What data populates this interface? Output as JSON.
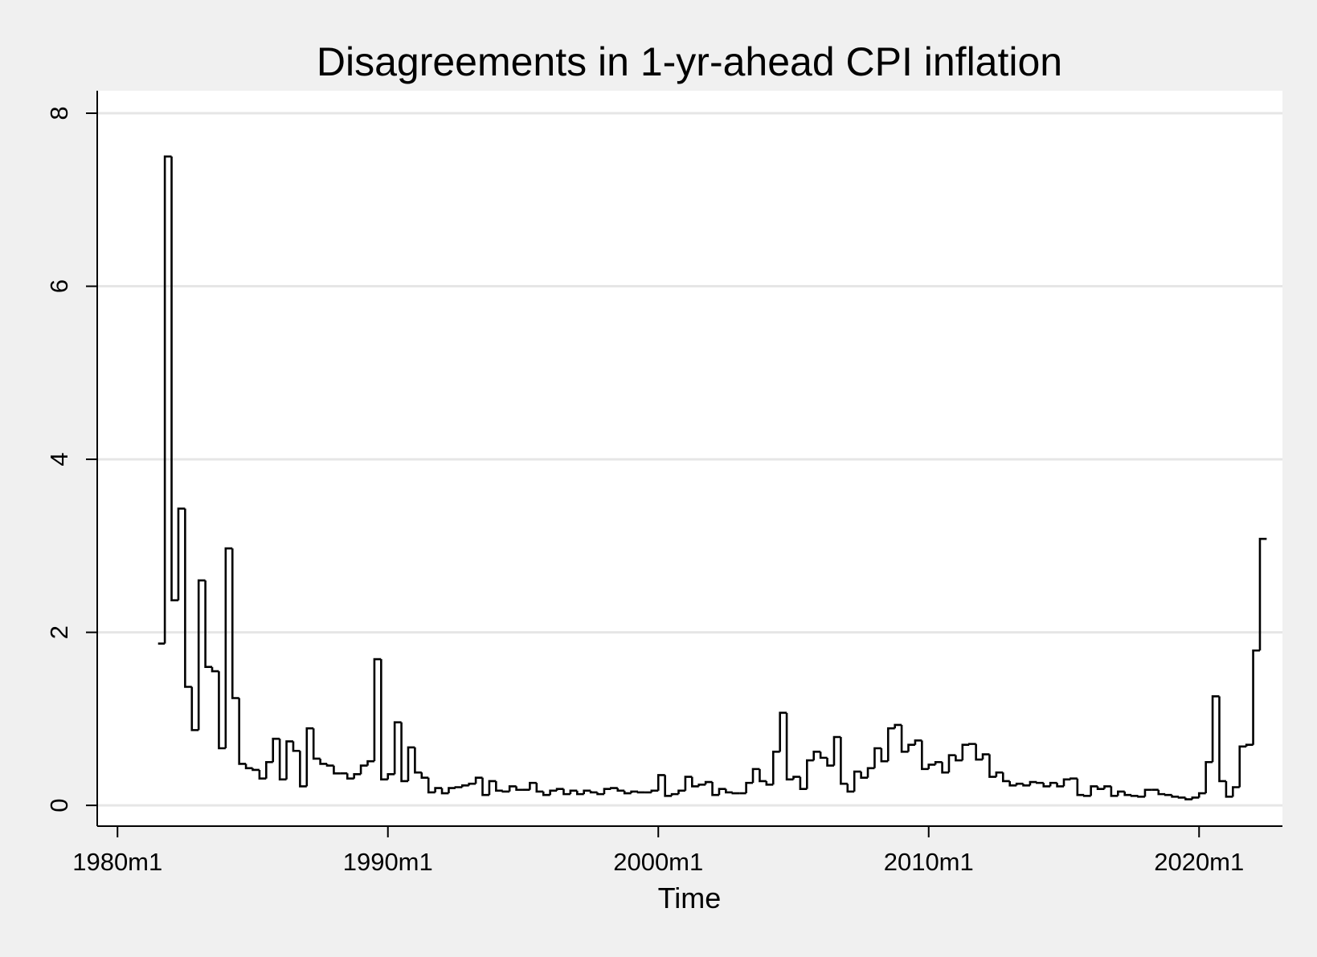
{
  "chart_data": {
    "type": "line",
    "title": "Disagreements in 1-yr-ahead CPI inflation",
    "x_label": "Time",
    "x": [
      "1981m7",
      "1981m10",
      "1982m1",
      "1982m4",
      "1982m7",
      "1982m10",
      "1983m1",
      "1983m4",
      "1983m7",
      "1983m10",
      "1984m1",
      "1984m4",
      "1984m7",
      "1984m10",
      "1985m1",
      "1985m4",
      "1985m7",
      "1985m10",
      "1986m1",
      "1986m4",
      "1986m7",
      "1986m10",
      "1987m1",
      "1987m4",
      "1987m7",
      "1987m10",
      "1988m1",
      "1988m4",
      "1988m7",
      "1988m10",
      "1989m1",
      "1989m4",
      "1989m7",
      "1989m10",
      "1990m1",
      "1990m4",
      "1990m7",
      "1990m10",
      "1991m1",
      "1991m4",
      "1991m7",
      "1991m10",
      "1992m1",
      "1992m4",
      "1992m7",
      "1992m10",
      "1993m1",
      "1993m4",
      "1993m7",
      "1993m10",
      "1994m1",
      "1994m4",
      "1994m7",
      "1994m10",
      "1995m1",
      "1995m4",
      "1995m7",
      "1995m10",
      "1996m1",
      "1996m4",
      "1996m7",
      "1996m10",
      "1997m1",
      "1997m4",
      "1997m7",
      "1997m10",
      "1998m1",
      "1998m4",
      "1998m7",
      "1998m10",
      "1999m1",
      "1999m4",
      "1999m7",
      "1999m10",
      "2000m1",
      "2000m4",
      "2000m7",
      "2000m10",
      "2001m1",
      "2001m4",
      "2001m7",
      "2001m10",
      "2002m1",
      "2002m4",
      "2002m7",
      "2002m10",
      "2003m1",
      "2003m4",
      "2003m7",
      "2003m10",
      "2004m1",
      "2004m4",
      "2004m7",
      "2004m10",
      "2005m1",
      "2005m4",
      "2005m7",
      "2005m10",
      "2006m1",
      "2006m4",
      "2006m7",
      "2006m10",
      "2007m1",
      "2007m4",
      "2007m7",
      "2007m10",
      "2008m1",
      "2008m4",
      "2008m7",
      "2008m10",
      "2009m1",
      "2009m4",
      "2009m7",
      "2009m10",
      "2010m1",
      "2010m4",
      "2010m7",
      "2010m10",
      "2011m1",
      "2011m4",
      "2011m7",
      "2011m10",
      "2012m1",
      "2012m4",
      "2012m7",
      "2012m10",
      "2013m1",
      "2013m4",
      "2013m7",
      "2013m10",
      "2014m1",
      "2014m4",
      "2014m7",
      "2014m10",
      "2015m1",
      "2015m4",
      "2015m7",
      "2015m10",
      "2016m1",
      "2016m4",
      "2016m7",
      "2016m10",
      "2017m1",
      "2017m4",
      "2017m7",
      "2017m10",
      "2018m1",
      "2018m4",
      "2018m7",
      "2018m10",
      "2019m1",
      "2019m4",
      "2019m7",
      "2019m10",
      "2020m1",
      "2020m4",
      "2020m7",
      "2020m10",
      "2021m1",
      "2021m4",
      "2021m7",
      "2021m10",
      "2022m1",
      "2022m4"
    ],
    "series": [
      {
        "color": "#000000",
        "values": [
          1.87,
          7.5,
          2.37,
          3.43,
          1.37,
          0.87,
          2.6,
          1.6,
          1.55,
          0.66,
          2.97,
          1.24,
          0.48,
          0.43,
          0.41,
          0.31,
          0.5,
          0.77,
          0.3,
          0.74,
          0.63,
          0.22,
          0.89,
          0.54,
          0.48,
          0.46,
          0.37,
          0.37,
          0.31,
          0.36,
          0.46,
          0.51,
          1.69,
          0.3,
          0.36,
          0.96,
          0.28,
          0.67,
          0.38,
          0.32,
          0.15,
          0.2,
          0.14,
          0.2,
          0.21,
          0.23,
          0.25,
          0.32,
          0.12,
          0.28,
          0.17,
          0.16,
          0.22,
          0.18,
          0.18,
          0.26,
          0.16,
          0.12,
          0.17,
          0.19,
          0.13,
          0.17,
          0.13,
          0.17,
          0.15,
          0.13,
          0.19,
          0.2,
          0.17,
          0.14,
          0.16,
          0.15,
          0.15,
          0.17,
          0.35,
          0.11,
          0.13,
          0.17,
          0.33,
          0.22,
          0.24,
          0.27,
          0.12,
          0.19,
          0.15,
          0.14,
          0.14,
          0.26,
          0.42,
          0.28,
          0.24,
          0.62,
          1.07,
          0.3,
          0.33,
          0.19,
          0.52,
          0.62,
          0.55,
          0.46,
          0.79,
          0.25,
          0.16,
          0.39,
          0.32,
          0.43,
          0.66,
          0.51,
          0.89,
          0.93,
          0.62,
          0.7,
          0.75,
          0.42,
          0.47,
          0.5,
          0.38,
          0.58,
          0.52,
          0.7,
          0.71,
          0.53,
          0.59,
          0.33,
          0.38,
          0.28,
          0.23,
          0.25,
          0.23,
          0.27,
          0.26,
          0.22,
          0.26,
          0.22,
          0.3,
          0.31,
          0.12,
          0.11,
          0.22,
          0.19,
          0.22,
          0.11,
          0.16,
          0.12,
          0.11,
          0.1,
          0.18,
          0.18,
          0.13,
          0.12,
          0.1,
          0.09,
          0.07,
          0.09,
          0.14,
          0.5,
          1.26,
          0.28,
          0.1,
          0.21,
          0.68,
          0.7,
          1.79,
          3.08
        ]
      }
    ],
    "xlim": [
      "1979m4",
      "2023m2"
    ],
    "xticks": [
      "1980m1",
      "1990m1",
      "2000m1",
      "2010m1",
      "2020m1"
    ],
    "ylim": [
      -0.24,
      8.26
    ],
    "yticks": [
      0,
      2,
      4,
      6,
      8
    ],
    "grid": true
  }
}
